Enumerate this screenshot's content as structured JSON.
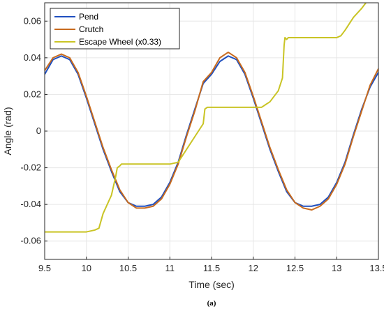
{
  "chart_data": {
    "type": "line",
    "title": "",
    "xlabel": "Time (sec)",
    "ylabel": "Angle (rad)",
    "caption": "(a)",
    "xlim": [
      9.5,
      13.5
    ],
    "ylim": [
      -0.07,
      0.07
    ],
    "xticks": [
      9.5,
      10,
      10.5,
      11,
      11.5,
      12,
      12.5,
      13,
      13.5
    ],
    "yticks": [
      -0.06,
      -0.04,
      -0.02,
      0,
      0.02,
      0.04,
      0.06
    ],
    "xtick_labels": [
      "9.5",
      "10",
      "10.5",
      "11",
      "11.5",
      "12",
      "12.5",
      "13",
      "13.5"
    ],
    "ytick_labels": [
      "-0.06",
      "-0.04",
      "-0.02",
      "0",
      "0.02",
      "0.04",
      "0.06"
    ],
    "grid": true,
    "legend_position": "top-left",
    "series": [
      {
        "name": "Pend",
        "color": "#1f4fbf",
        "points": [
          [
            9.5,
            0.031
          ],
          [
            9.6,
            0.039
          ],
          [
            9.7,
            0.041
          ],
          [
            9.8,
            0.039
          ],
          [
            9.9,
            0.031
          ],
          [
            10.0,
            0.018
          ],
          [
            10.1,
            0.004
          ],
          [
            10.2,
            -0.01
          ],
          [
            10.3,
            -0.022
          ],
          [
            10.4,
            -0.033
          ],
          [
            10.5,
            -0.039
          ],
          [
            10.6,
            -0.041
          ],
          [
            10.7,
            -0.041
          ],
          [
            10.8,
            -0.04
          ],
          [
            10.9,
            -0.036
          ],
          [
            11.0,
            -0.028
          ],
          [
            11.1,
            -0.017
          ],
          [
            11.2,
            -0.002
          ],
          [
            11.3,
            0.012
          ],
          [
            11.4,
            0.026
          ],
          [
            11.5,
            0.031
          ],
          [
            11.6,
            0.038
          ],
          [
            11.7,
            0.041
          ],
          [
            11.8,
            0.039
          ],
          [
            11.9,
            0.031
          ],
          [
            12.0,
            0.018
          ],
          [
            12.1,
            0.004
          ],
          [
            12.2,
            -0.01
          ],
          [
            12.3,
            -0.022
          ],
          [
            12.4,
            -0.033
          ],
          [
            12.5,
            -0.039
          ],
          [
            12.6,
            -0.041
          ],
          [
            12.7,
            -0.041
          ],
          [
            12.8,
            -0.04
          ],
          [
            12.9,
            -0.036
          ],
          [
            13.0,
            -0.028
          ],
          [
            13.1,
            -0.017
          ],
          [
            13.2,
            -0.002
          ],
          [
            13.3,
            0.012
          ],
          [
            13.4,
            0.024
          ],
          [
            13.5,
            0.032
          ]
        ]
      },
      {
        "name": "Crutch",
        "color": "#c86b1e",
        "points": [
          [
            9.5,
            0.033
          ],
          [
            9.6,
            0.04
          ],
          [
            9.7,
            0.042
          ],
          [
            9.8,
            0.04
          ],
          [
            9.9,
            0.032
          ],
          [
            10.0,
            0.019
          ],
          [
            10.1,
            0.005
          ],
          [
            10.2,
            -0.009
          ],
          [
            10.3,
            -0.021
          ],
          [
            10.4,
            -0.032
          ],
          [
            10.5,
            -0.039
          ],
          [
            10.6,
            -0.042
          ],
          [
            10.7,
            -0.042
          ],
          [
            10.8,
            -0.041
          ],
          [
            10.9,
            -0.037
          ],
          [
            11.0,
            -0.029
          ],
          [
            11.1,
            -0.018
          ],
          [
            11.2,
            -0.003
          ],
          [
            11.3,
            0.011
          ],
          [
            11.4,
            0.027
          ],
          [
            11.5,
            0.032
          ],
          [
            11.6,
            0.04
          ],
          [
            11.7,
            0.043
          ],
          [
            11.8,
            0.04
          ],
          [
            11.9,
            0.032
          ],
          [
            12.0,
            0.019
          ],
          [
            12.1,
            0.005
          ],
          [
            12.2,
            -0.009
          ],
          [
            12.3,
            -0.021
          ],
          [
            12.4,
            -0.032
          ],
          [
            12.5,
            -0.039
          ],
          [
            12.6,
            -0.042
          ],
          [
            12.7,
            -0.043
          ],
          [
            12.8,
            -0.041
          ],
          [
            12.9,
            -0.037
          ],
          [
            13.0,
            -0.029
          ],
          [
            13.1,
            -0.018
          ],
          [
            13.2,
            -0.003
          ],
          [
            13.3,
            0.011
          ],
          [
            13.4,
            0.025
          ],
          [
            13.5,
            0.034
          ]
        ]
      },
      {
        "name": "Escape Wheel (x0.33)",
        "color": "#c9c425",
        "points": [
          [
            9.5,
            -0.055
          ],
          [
            9.8,
            -0.055
          ],
          [
            10.0,
            -0.055
          ],
          [
            10.1,
            -0.054
          ],
          [
            10.15,
            -0.053
          ],
          [
            10.2,
            -0.045
          ],
          [
            10.3,
            -0.035
          ],
          [
            10.35,
            -0.025
          ],
          [
            10.37,
            -0.02
          ],
          [
            10.4,
            -0.019
          ],
          [
            10.42,
            -0.018
          ],
          [
            10.6,
            -0.018
          ],
          [
            10.8,
            -0.018
          ],
          [
            11.0,
            -0.018
          ],
          [
            11.1,
            -0.017
          ],
          [
            11.2,
            -0.01
          ],
          [
            11.3,
            -0.003
          ],
          [
            11.4,
            0.004
          ],
          [
            11.42,
            0.012
          ],
          [
            11.45,
            0.013
          ],
          [
            11.6,
            0.013
          ],
          [
            11.8,
            0.013
          ],
          [
            12.0,
            0.013
          ],
          [
            12.1,
            0.013
          ],
          [
            12.2,
            0.016
          ],
          [
            12.3,
            0.022
          ],
          [
            12.35,
            0.029
          ],
          [
            12.37,
            0.047
          ],
          [
            12.38,
            0.051
          ],
          [
            12.4,
            0.05
          ],
          [
            12.42,
            0.051
          ],
          [
            12.6,
            0.051
          ],
          [
            12.8,
            0.051
          ],
          [
            13.0,
            0.051
          ],
          [
            13.05,
            0.052
          ],
          [
            13.1,
            0.055
          ],
          [
            13.2,
            0.062
          ],
          [
            13.3,
            0.067
          ],
          [
            13.35,
            0.07
          ]
        ]
      }
    ]
  }
}
